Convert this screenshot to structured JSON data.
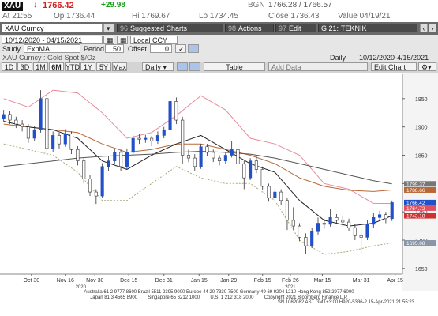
{
  "quote": {
    "ticker": "XAU",
    "arrow": "↓",
    "last": "1766.42",
    "change": "+29.98",
    "bgn": "BGN",
    "bid_ask": "1766.28 / 1766.57",
    "time": "At 21:55",
    "open": "Op 1736.44",
    "high": "Hi 1769.67",
    "low": "Lo 1734.45",
    "close": "Close 1736.43",
    "value_date": "Value 04/19/21"
  },
  "toolbar": {
    "security": "XAU Curncy",
    "buttons": [
      {
        "num": "96",
        "label": "Suggested Charts"
      },
      {
        "num": "98",
        "label": "Actions"
      },
      {
        "num": "97",
        "label": "Edit"
      },
      {
        "num": "G 21:",
        "label": "TEKNIK COZUMLEM..."
      }
    ],
    "range": "10/12/2020 - 04/15/2021",
    "currency": "Local CCY",
    "study_label": "Study",
    "study": "ExpMA",
    "period_label": "Period",
    "period": "50",
    "offset_label": "Offset",
    "offset": "0",
    "description": "XAU Curncy : Gold Spot   $/Oz",
    "frequency": "Daily",
    "date_span": "10/12/2020-4/15/2021",
    "periods": [
      "1D",
      "3D",
      "1M",
      "6M",
      "YTD",
      "1Y",
      "5Y",
      "Max"
    ],
    "selected_period": "6M",
    "frequency_menu": "Daily ▾",
    "table": "Table",
    "add_data": "Add Data",
    "edit_chart": "Edit Chart"
  },
  "chart_data": {
    "type": "candlestick",
    "up_color": "#2150c8",
    "down_color": "#ffffff",
    "xlim": [
      -0.6,
      64.7
    ],
    "ylim": [
      1640,
      1993
    ],
    "yticks": [
      1650,
      1700,
      1750,
      1800,
      1850,
      1900,
      1950
    ],
    "xticks": [
      {
        "value": 4.5,
        "label": "Oct 30"
      },
      {
        "value": 10,
        "label": "Nov 16"
      },
      {
        "value": 14.8,
        "label": "Nov 30"
      },
      {
        "value": 20.3,
        "label": "Dec 15"
      },
      {
        "value": 26,
        "label": "Dec 31"
      },
      {
        "value": 31.7,
        "label": "Jan 15"
      },
      {
        "value": 36.5,
        "label": "Jan 29"
      },
      {
        "value": 42,
        "label": "Feb 15"
      },
      {
        "value": 46.5,
        "label": "Feb 26"
      },
      {
        "value": 51.7,
        "label": "Mar 15"
      },
      {
        "value": 58,
        "label": "Mar 31"
      },
      {
        "value": 63.5,
        "label": "Apr 15"
      }
    ],
    "year_labels": [
      {
        "value": 12.5,
        "label": "2020"
      },
      {
        "value": 46.5,
        "label": "2021"
      }
    ],
    "candles": [
      [
        1915,
        1930,
        1908,
        1922
      ],
      [
        1922,
        1928,
        1905,
        1912
      ],
      [
        1912,
        1918,
        1898,
        1905
      ],
      [
        1905,
        1912,
        1892,
        1900
      ],
      [
        1900,
        1905,
        1872,
        1880
      ],
      [
        1880,
        1902,
        1875,
        1895
      ],
      [
        1895,
        1965,
        1890,
        1950
      ],
      [
        1950,
        1958,
        1850,
        1862
      ],
      [
        1862,
        1892,
        1855,
        1885
      ],
      [
        1885,
        1890,
        1862,
        1870
      ],
      [
        1870,
        1896,
        1865,
        1888
      ],
      [
        1888,
        1892,
        1852,
        1860
      ],
      [
        1860,
        1866,
        1832,
        1840
      ],
      [
        1840,
        1845,
        1800,
        1808
      ],
      [
        1808,
        1815,
        1778,
        1785
      ],
      [
        1785,
        1790,
        1764,
        1778
      ],
      [
        1778,
        1836,
        1775,
        1830
      ],
      [
        1830,
        1848,
        1822,
        1840
      ],
      [
        1840,
        1862,
        1835,
        1855
      ],
      [
        1855,
        1860,
        1822,
        1830
      ],
      [
        1830,
        1862,
        1826,
        1855
      ],
      [
        1855,
        1886,
        1850,
        1880
      ],
      [
        1880,
        1888,
        1870,
        1878
      ],
      [
        1878,
        1886,
        1872,
        1880
      ],
      [
        1880,
        1884,
        1866,
        1875
      ],
      [
        1875,
        1892,
        1870,
        1885
      ],
      [
        1885,
        1900,
        1880,
        1895
      ],
      [
        1895,
        1958,
        1892,
        1945
      ],
      [
        1945,
        1952,
        1905,
        1912
      ],
      [
        1912,
        1918,
        1835,
        1850
      ],
      [
        1850,
        1860,
        1838,
        1845
      ],
      [
        1845,
        1852,
        1822,
        1830
      ],
      [
        1830,
        1870,
        1826,
        1865
      ],
      [
        1865,
        1870,
        1848,
        1855
      ],
      [
        1855,
        1860,
        1838,
        1845
      ],
      [
        1845,
        1850,
        1832,
        1840
      ],
      [
        1840,
        1856,
        1835,
        1850
      ],
      [
        1850,
        1875,
        1846,
        1860
      ],
      [
        1860,
        1864,
        1830,
        1835
      ],
      [
        1835,
        1840,
        1790,
        1810
      ],
      [
        1810,
        1845,
        1806,
        1840
      ],
      [
        1840,
        1848,
        1818,
        1825
      ],
      [
        1825,
        1830,
        1788,
        1795
      ],
      [
        1795,
        1800,
        1768,
        1775
      ],
      [
        1775,
        1792,
        1770,
        1785
      ],
      [
        1785,
        1790,
        1762,
        1770
      ],
      [
        1770,
        1775,
        1718,
        1735
      ],
      [
        1735,
        1758,
        1718,
        1725
      ],
      [
        1725,
        1730,
        1698,
        1705
      ],
      [
        1705,
        1712,
        1676,
        1690
      ],
      [
        1690,
        1722,
        1686,
        1715
      ],
      [
        1715,
        1740,
        1710,
        1730
      ],
      [
        1730,
        1738,
        1720,
        1728
      ],
      [
        1728,
        1755,
        1724,
        1740
      ],
      [
        1740,
        1746,
        1728,
        1735
      ],
      [
        1735,
        1742,
        1724,
        1732
      ],
      [
        1732,
        1738,
        1716,
        1722
      ],
      [
        1722,
        1728,
        1700,
        1708
      ],
      [
        1708,
        1718,
        1678,
        1705
      ],
      [
        1705,
        1735,
        1700,
        1728
      ],
      [
        1728,
        1748,
        1722,
        1740
      ],
      [
        1740,
        1752,
        1734,
        1745
      ],
      [
        1745,
        1750,
        1730,
        1738
      ],
      [
        1738,
        1770,
        1734,
        1766.42
      ]
    ],
    "line_x": [
      0,
      4,
      8,
      12,
      16,
      20,
      24,
      28,
      32,
      36,
      40,
      44,
      48,
      52,
      56,
      60,
      63
    ],
    "series": [
      {
        "color": "#e88a9c",
        "dash": "none",
        "values": [
          1950,
          1935,
          1965,
          1960,
          1925,
          1880,
          1890,
          1920,
          1955,
          1930,
          1880,
          1870,
          1850,
          1800,
          1790,
          1765,
          1764.72
        ]
      },
      {
        "color": "#a8a878",
        "dash": "2 2",
        "values": [
          1870,
          1860,
          1850,
          1820,
          1770,
          1770,
          1800,
          1830,
          1810,
          1800,
          1800,
          1770,
          1700,
          1675,
          1680,
          1690,
          1695.08
        ]
      },
      {
        "color": "#b86838",
        "dash": "none",
        "values": [
          1905,
          1900,
          1895,
          1890,
          1870,
          1855,
          1860,
          1870,
          1870,
          1860,
          1850,
          1835,
          1810,
          1795,
          1788,
          1786,
          1788.66
        ]
      },
      {
        "color": "#222222",
        "dash": "none",
        "values": [
          1910,
          1900,
          1895,
          1880,
          1840,
          1825,
          1850,
          1870,
          1885,
          1860,
          1835,
          1820,
          1770,
          1735,
          1725,
          1730,
          1743.18
        ]
      },
      {
        "color": "#555555",
        "dash": "none",
        "values": [
          1830,
          1835,
          1840,
          1845,
          1848,
          1850,
          1852,
          1855,
          1857,
          1855,
          1852,
          1845,
          1835,
          1825,
          1815,
          1805,
          1799.37
        ]
      }
    ],
    "price_tags": [
      {
        "value": 1799.37,
        "color": "#777777"
      },
      {
        "value": 1788.66,
        "color": "#b86838"
      },
      {
        "value": 1766.42,
        "color": "#2150c8"
      },
      {
        "value": 1764.72,
        "color": "#e05060"
      },
      {
        "value": 1743.18,
        "color": "#d03030"
      },
      {
        "value": 1695.08,
        "color": "#8a96a8"
      }
    ]
  },
  "footer": {
    "lines": [
      "Australia 61 2 9777 8600 Brazil 5511 2395 9000 Europe 44 20 7330 7500 Germany 49 69 9204 1210 Hong Kong 852 2977 6000",
      "Japan 81 3 4565 8900        Singapore 65 6212 1000        U.S. 1 212 318 2000        Copyright 2021 Bloomberg Finance L.P.",
      "SN 1082082 AST  GMT+3:00 H920-5336-2 15-Apr-2021 21:55:23"
    ]
  }
}
